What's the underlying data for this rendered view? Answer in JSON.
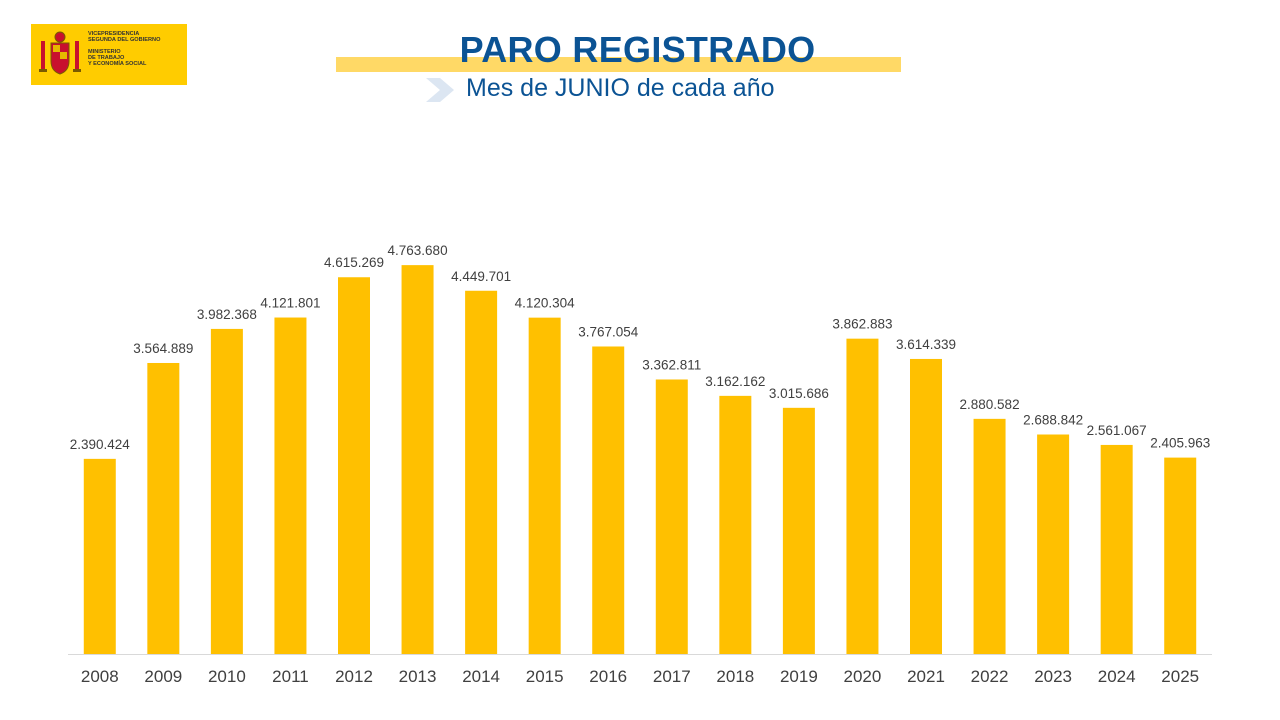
{
  "logo": {
    "line1": "VICEPRESIDENCIA",
    "line2": "SEGUNDA DEL GOBIERNO",
    "line3": "MINISTERIO",
    "line4": "DE TRABAJO",
    "line5": "Y ECONOMÍA SOCIAL",
    "color": "#FFCC00"
  },
  "header": {
    "title": "PARO REGISTRADO",
    "subtitle": "Mes de JUNIO de cada año"
  },
  "colors": {
    "bar": "#FFC000",
    "title": "#0B5394",
    "title_highlight": "#FFD966",
    "label": "#404040"
  },
  "chart_data": {
    "type": "bar",
    "title": "PARO REGISTRADO",
    "subtitle": "Mes de JUNIO de cada año",
    "categories": [
      "2008",
      "2009",
      "2010",
      "2011",
      "2012",
      "2013",
      "2014",
      "2015",
      "2016",
      "2017",
      "2018",
      "2019",
      "2020",
      "2021",
      "2022",
      "2023",
      "2024",
      "2025"
    ],
    "values": [
      2390424,
      3564889,
      3982368,
      4121801,
      4615269,
      4763680,
      4449701,
      4120304,
      3767054,
      3362811,
      3162162,
      3015686,
      3862883,
      3614339,
      2880582,
      2688842,
      2561067,
      2405963
    ],
    "labels": [
      "2.390.424",
      "3.564.889",
      "3.982.368",
      "4.121.801",
      "4.615.269",
      "4.763.680",
      "4.449.701",
      "4.120.304",
      "3.767.054",
      "3.362.811",
      "3.162.162",
      "3.015.686",
      "3.862.883",
      "3.614.339",
      "2.880.582",
      "2.688.842",
      "2.561.067",
      "2.405.963"
    ],
    "ylim": [
      0,
      4900000
    ],
    "grid": false,
    "legend": "none"
  }
}
